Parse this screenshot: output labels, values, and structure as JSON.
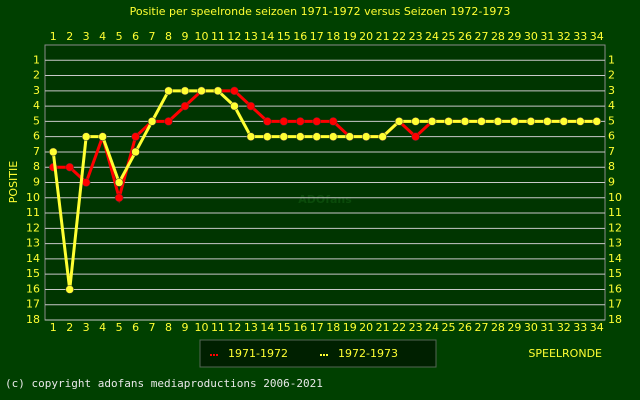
{
  "chart_data": {
    "type": "line",
    "title": "Positie per speelronde seizoen 1971-1972 versus Seizoen 1972-1973",
    "y_label": "POSITIE",
    "x_label": "SPEELRONDE",
    "watermark": "ADOfans",
    "footer": "(c) copyright adofans mediaproductions 2006-2021",
    "x": [
      1,
      2,
      3,
      4,
      5,
      6,
      7,
      8,
      9,
      10,
      11,
      12,
      13,
      14,
      15,
      16,
      17,
      18,
      19,
      20,
      21,
      22,
      23,
      24,
      25,
      26,
      27,
      28,
      29,
      30,
      31,
      32,
      33,
      34
    ],
    "xlim": [
      0.5,
      34.5
    ],
    "xticks": [
      1,
      2,
      3,
      4,
      5,
      6,
      7,
      8,
      9,
      10,
      11,
      12,
      13,
      14,
      15,
      16,
      17,
      18,
      19,
      20,
      21,
      22,
      23,
      24,
      25,
      26,
      27,
      28,
      29,
      30,
      31,
      32,
      33,
      34
    ],
    "ylim": [
      0,
      18
    ],
    "y_inverted": true,
    "yticks": [
      1,
      2,
      3,
      4,
      5,
      6,
      7,
      8,
      9,
      10,
      11,
      12,
      13,
      14,
      15,
      16,
      17,
      18
    ],
    "grid": true,
    "series": [
      {
        "name": "1971-1972",
        "color": "#ff0000",
        "values": [
          8,
          8,
          9,
          6,
          10,
          6,
          5,
          5,
          4,
          3,
          3,
          3,
          4,
          5,
          5,
          5,
          5,
          5,
          6,
          6,
          6,
          5,
          6,
          5,
          5,
          5,
          5,
          5,
          5,
          5,
          5,
          5,
          5,
          5
        ]
      },
      {
        "name": "1972-1973",
        "color": "#ffff33",
        "values": [
          7,
          16,
          6,
          6,
          9,
          7,
          5,
          3,
          3,
          3,
          3,
          4,
          6,
          6,
          6,
          6,
          6,
          6,
          6,
          6,
          6,
          5,
          5,
          5,
          5,
          5,
          5,
          5,
          5,
          5,
          5,
          5,
          5,
          5
        ]
      }
    ]
  }
}
